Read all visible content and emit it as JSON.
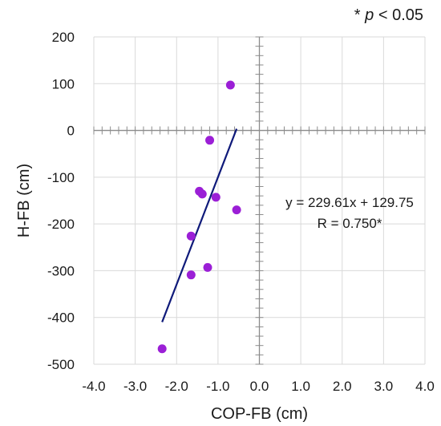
{
  "significance_note": {
    "star": "*",
    "p": "p",
    "rest": "< 0.05"
  },
  "chart_data": {
    "type": "scatter",
    "title": "",
    "xlabel": "COP-FB (cm)",
    "ylabel": "H-FB (cm)",
    "xlim": [
      -4.0,
      4.0
    ],
    "ylim": [
      -500,
      200
    ],
    "x_ticks": [
      -4.0,
      -3.0,
      -2.0,
      -1.0,
      0.0,
      1.0,
      2.0,
      3.0,
      4.0
    ],
    "x_tick_labels": [
      "-4.0",
      "-3.0",
      "-2.0",
      "-1.0",
      "0.0",
      "1.0",
      "2.0",
      "3.0",
      "4.0"
    ],
    "y_ticks": [
      200,
      100,
      0,
      -100,
      -200,
      -300,
      -400,
      -500
    ],
    "y_tick_labels": [
      "200",
      "100",
      "0",
      "-100",
      "-200",
      "-300",
      "-400",
      "-500"
    ],
    "grid": true,
    "point_color": "#9b1fd6",
    "line_color": "#0f1a7a",
    "series": [
      {
        "points": [
          {
            "x": -0.7,
            "y": 97
          },
          {
            "x": -1.2,
            "y": -21
          },
          {
            "x": -1.45,
            "y": -130
          },
          {
            "x": -1.38,
            "y": -136
          },
          {
            "x": -1.05,
            "y": -143
          },
          {
            "x": -0.55,
            "y": -170
          },
          {
            "x": -1.65,
            "y": -226
          },
          {
            "x": -1.25,
            "y": -293
          },
          {
            "x": -1.65,
            "y": -309
          },
          {
            "x": -2.35,
            "y": -467
          }
        ]
      }
    ],
    "trendline": {
      "slope": 229.61,
      "intercept": 129.75,
      "x_range": [
        -2.35,
        -0.55
      ]
    },
    "annotations": {
      "equation": "y = 229.61x + 129.75",
      "r_value": "R = 0.750*"
    }
  }
}
